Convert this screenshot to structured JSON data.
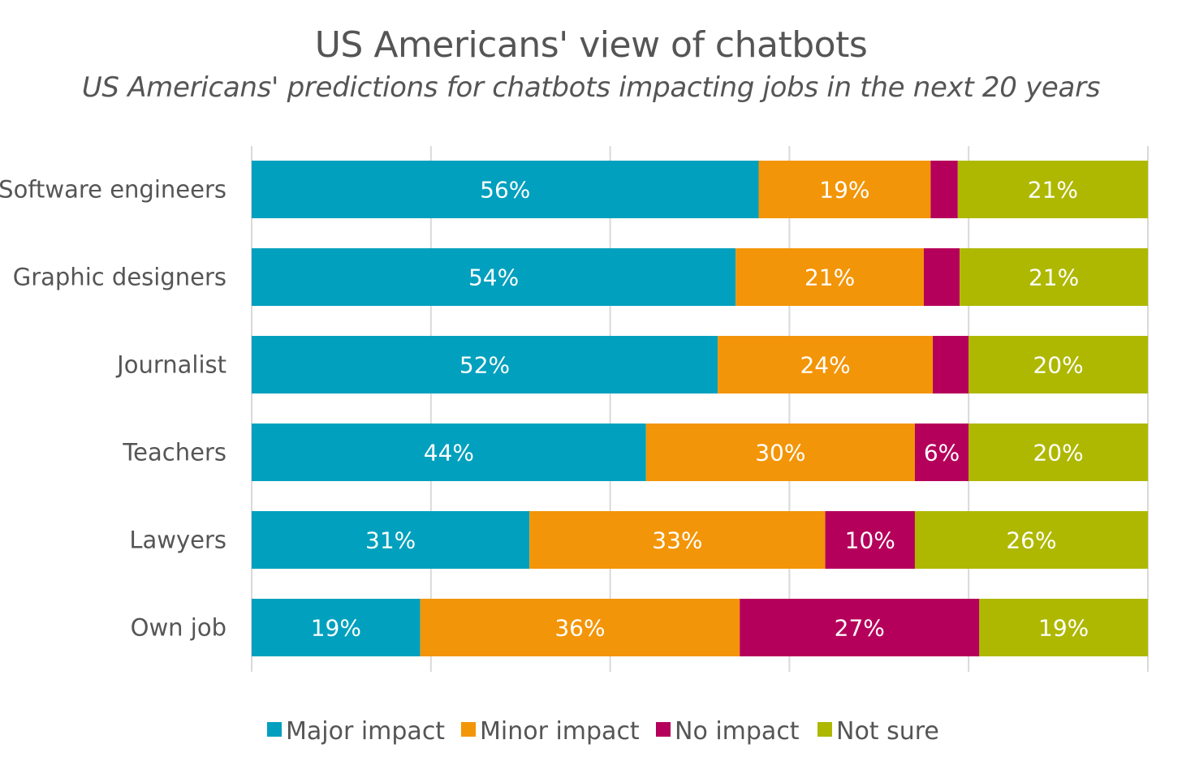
{
  "chart_data": {
    "type": "bar",
    "orientation": "horizontal",
    "stacked": true,
    "title": "US Americans' view of chatbots",
    "subtitle": "US Americans' predictions for chatbots impacting jobs in the next 20 years",
    "categories": [
      "Software engineers",
      "Graphic designers",
      "Journalist",
      "Teachers",
      "Lawyers",
      "Own job"
    ],
    "series": [
      {
        "name": "Major impact",
        "color": "#00A0BE",
        "values": [
          56,
          54,
          52,
          44,
          31,
          19
        ],
        "labels": [
          "56%",
          "54%",
          "52%",
          "44%",
          "31%",
          "19%"
        ]
      },
      {
        "name": "Minor impact",
        "color": "#F39508",
        "values": [
          19,
          21,
          24,
          30,
          33,
          36
        ],
        "labels": [
          "19%",
          "21%",
          "24%",
          "30%",
          "33%",
          "36%"
        ]
      },
      {
        "name": "No impact",
        "color": "#B5005B",
        "values": [
          3,
          4,
          4,
          6,
          10,
          27
        ],
        "labels": [
          "",
          "",
          "",
          "6%",
          "10%",
          "27%"
        ]
      },
      {
        "name": "Not sure",
        "color": "#AEB800",
        "values": [
          21,
          21,
          20,
          20,
          26,
          19
        ],
        "labels": [
          "21%",
          "21%",
          "20%",
          "20%",
          "26%",
          "19%"
        ]
      }
    ],
    "xlim": [
      0,
      100
    ],
    "grid": true,
    "legend_position": "bottom"
  }
}
